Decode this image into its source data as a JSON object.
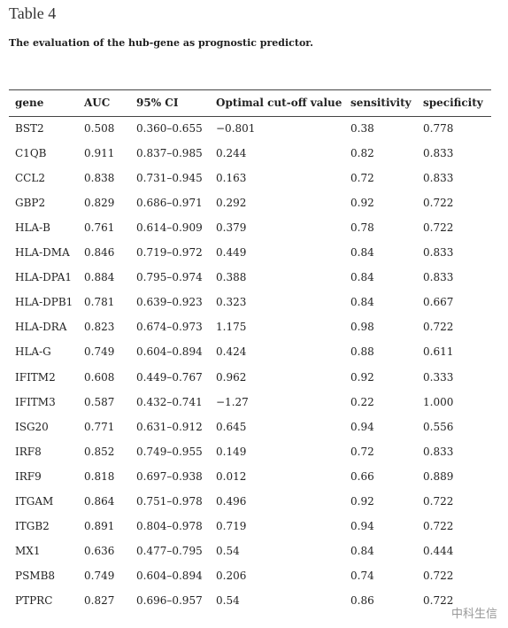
{
  "header": {
    "title": "Table 4",
    "caption": "The evaluation of the hub-gene as prognostic predictor."
  },
  "table": {
    "columns": [
      "gene",
      "AUC",
      "95% CI",
      "Optimal cut-off value",
      "sensitivity",
      "specificity"
    ],
    "rows": [
      [
        "BST2",
        "0.508",
        "0.360–0.655",
        "−0.801",
        "0.38",
        "0.778"
      ],
      [
        "C1QB",
        "0.911",
        "0.837–0.985",
        "0.244",
        "0.82",
        "0.833"
      ],
      [
        "CCL2",
        "0.838",
        "0.731–0.945",
        "0.163",
        "0.72",
        "0.833"
      ],
      [
        "GBP2",
        "0.829",
        "0.686–0.971",
        "0.292",
        "0.92",
        "0.722"
      ],
      [
        "HLA-B",
        "0.761",
        "0.614–0.909",
        "0.379",
        "0.78",
        "0.722"
      ],
      [
        "HLA-DMA",
        "0.846",
        "0.719–0.972",
        "0.449",
        "0.84",
        "0.833"
      ],
      [
        "HLA-DPA1",
        "0.884",
        "0.795–0.974",
        "0.388",
        "0.84",
        "0.833"
      ],
      [
        "HLA-DPB1",
        "0.781",
        "0.639–0.923",
        "0.323",
        "0.84",
        "0.667"
      ],
      [
        "HLA-DRA",
        "0.823",
        "0.674–0.973",
        "1.175",
        "0.98",
        "0.722"
      ],
      [
        "HLA-G",
        "0.749",
        "0.604–0.894",
        "0.424",
        "0.88",
        "0.611"
      ],
      [
        "IFITM2",
        "0.608",
        "0.449–0.767",
        "0.962",
        "0.92",
        "0.333"
      ],
      [
        "IFITM3",
        "0.587",
        "0.432–0.741",
        "−1.27",
        "0.22",
        "1.000"
      ],
      [
        "ISG20",
        "0.771",
        "0.631–0.912",
        "0.645",
        "0.94",
        "0.556"
      ],
      [
        "IRF8",
        "0.852",
        "0.749–0.955",
        "0.149",
        "0.72",
        "0.833"
      ],
      [
        "IRF9",
        "0.818",
        "0.697–0.938",
        "0.012",
        "0.66",
        "0.889"
      ],
      [
        "ITGAM",
        "0.864",
        "0.751–0.978",
        "0.496",
        "0.92",
        "0.722"
      ],
      [
        "ITGB2",
        "0.891",
        "0.804–0.978",
        "0.719",
        "0.94",
        "0.722"
      ],
      [
        "MX1",
        "0.636",
        "0.477–0.795",
        "0.54",
        "0.84",
        "0.444"
      ],
      [
        "PSMB8",
        "0.749",
        "0.604–0.894",
        "0.206",
        "0.74",
        "0.722"
      ],
      [
        "PTPRC",
        "0.827",
        "0.696–0.957",
        "0.54",
        "0.86",
        "0.722"
      ]
    ]
  },
  "watermark": "中科生信"
}
